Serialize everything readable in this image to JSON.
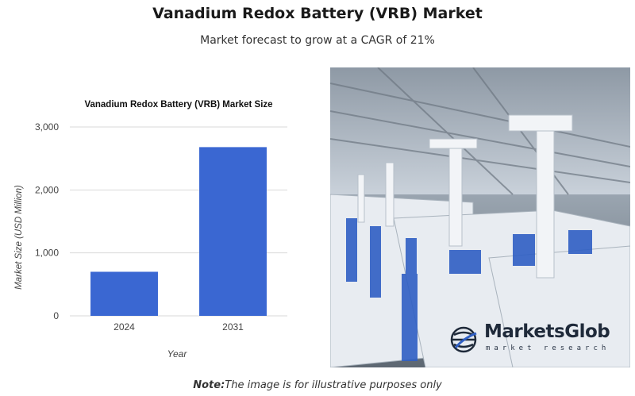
{
  "header": {
    "title": "Vanadium Redox Battery (VRB) Market",
    "subtitle": "Market forecast to grow at a CAGR of 21%"
  },
  "chart_data": {
    "type": "bar",
    "title": "Vanadium Redox Battery (VRB) Market Size",
    "xlabel": "Year",
    "ylabel": "Market Size (USD Million)",
    "categories": [
      "2024",
      "2031"
    ],
    "values": [
      700,
      2680
    ],
    "ylim": [
      0,
      3000
    ],
    "yticks": [
      0,
      1000,
      2000,
      3000
    ],
    "ytick_labels": [
      "0",
      "1,000",
      "2,000",
      "3,000"
    ],
    "bar_color": "#3a67d2",
    "grid": true,
    "legend": "none"
  },
  "photo": {
    "icon": "battery-storage-photo"
  },
  "logo": {
    "name": "MarketsGlob",
    "tagline": "market research",
    "icon": "globe-logo-icon"
  },
  "note": {
    "label": "Note:",
    "text": "The image is for illustrative purposes only"
  }
}
